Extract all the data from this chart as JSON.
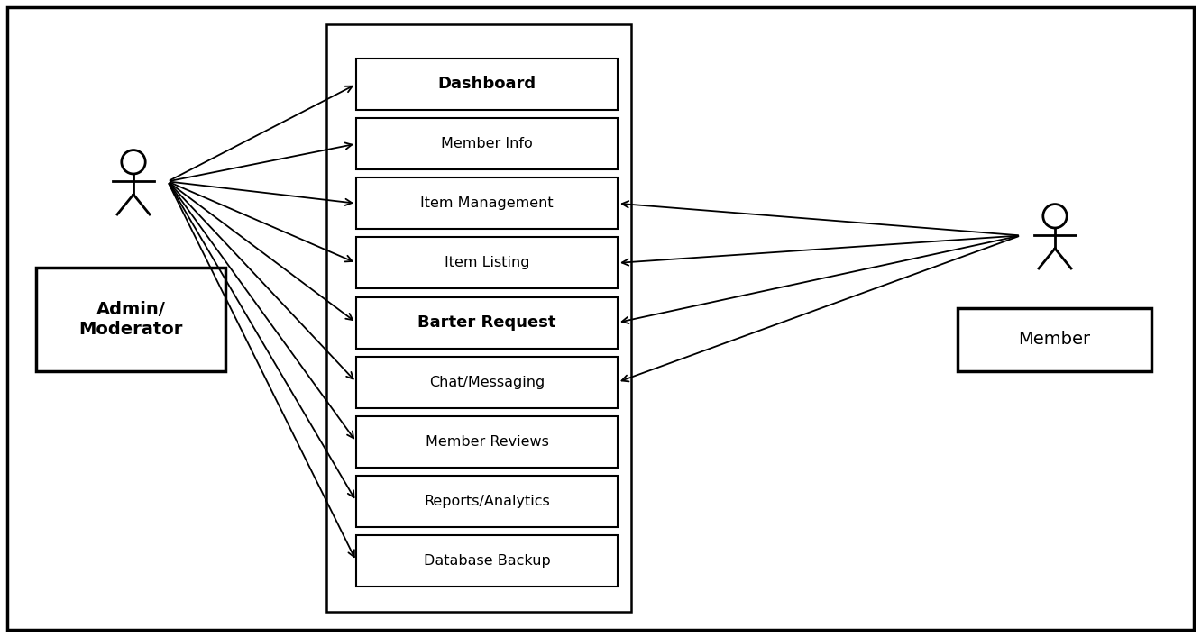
{
  "background_color": "#ffffff",
  "border_color": "#000000",
  "use_cases": [
    {
      "label": "Dashboard",
      "bold": true
    },
    {
      "label": "Member Info",
      "bold": false
    },
    {
      "label": "Item Management",
      "bold": false
    },
    {
      "label": "Item Listing",
      "bold": false
    },
    {
      "label": "Barter Request",
      "bold": true
    },
    {
      "label": "Chat/Messaging",
      "bold": false
    },
    {
      "label": "Member Reviews",
      "bold": false
    },
    {
      "label": "Reports/Analytics",
      "bold": false
    },
    {
      "label": "Database Backup",
      "bold": false
    }
  ],
  "admin_label": "Admin/\nModerator",
  "member_label": "Member",
  "admin_connects_to": [
    0,
    1,
    2,
    3,
    4,
    5,
    6,
    7,
    8
  ],
  "member_connects_to": [
    2,
    3,
    4,
    5
  ],
  "outer_border_lw": 2.5,
  "system_border_lw": 1.8,
  "uc_border_lw": 1.5,
  "actor_border_lw": 2.5,
  "arrow_lw": 1.3,
  "arrow_mutation_scale": 13
}
